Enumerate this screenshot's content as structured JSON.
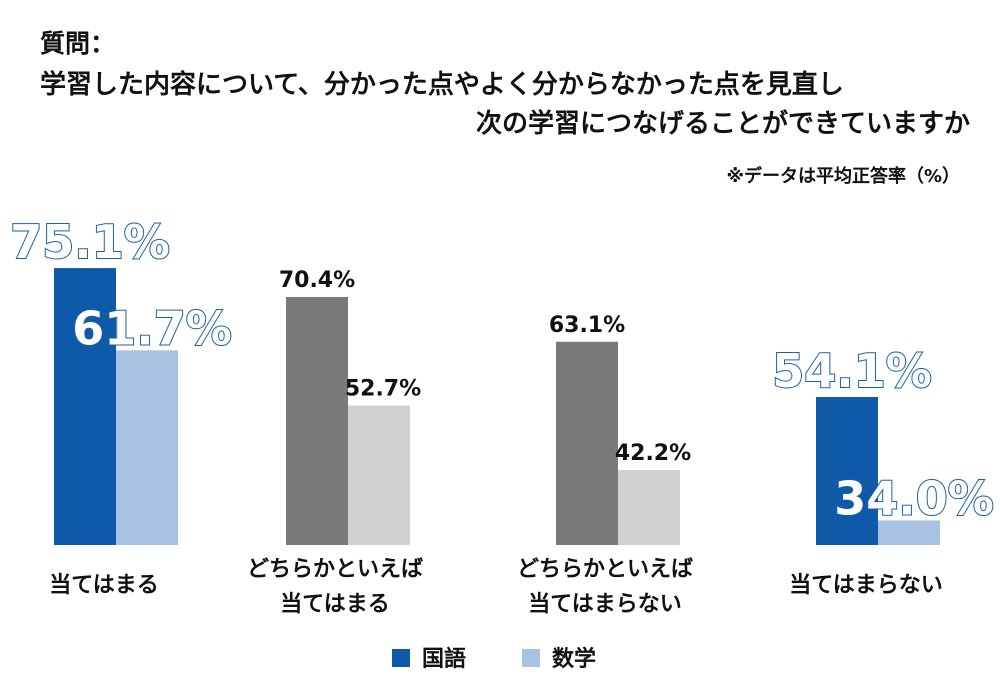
{
  "header": {
    "question_label": "質問：",
    "title_line1": "学習した内容について、分かった点やよく分からなかった点を見直し",
    "title_line2": "次の学習につなげることができていますか",
    "note": "※データは平均正答率（%）"
  },
  "colors": {
    "kokugo_highlight": "#0f5aa8",
    "sugaku_highlight": "#a7c2e3",
    "kokugo_gray": "#7a7a7a",
    "sugaku_gray": "#d0d0d0",
    "big_label_fill": "#ffffff",
    "big_label_stroke": "#1b5fa8"
  },
  "chart_data": {
    "type": "bar",
    "title": "学習した内容について、分かった点やよく分からなかった点を見直し次の学習につなげることができていますか",
    "unit": "%",
    "categories": [
      "当てはまる",
      "どちらかといえば当てはまる",
      "どちらかといえば当てはまらない",
      "当てはまらない"
    ],
    "category_lines": [
      [
        "当てはまる"
      ],
      [
        "どちらかといえば",
        "当てはまる"
      ],
      [
        "どちらかといえば",
        "当てはまらない"
      ],
      [
        "当てはまらない"
      ]
    ],
    "series": [
      {
        "name": "国語",
        "values": [
          75.1,
          70.4,
          63.1,
          54.1
        ],
        "labels": [
          "75.1%",
          "70.4%",
          "63.1%",
          "54.1%"
        ]
      },
      {
        "name": "数学",
        "values": [
          61.7,
          52.7,
          42.2,
          34.0
        ],
        "labels": [
          "61.7%",
          "52.7%",
          "42.2%",
          "34.0%"
        ]
      }
    ],
    "highlighted_categories": [
      0,
      3
    ],
    "ylim": [
      30,
      80
    ],
    "legend": {
      "position": "bottom",
      "entries": [
        "国語",
        "数学"
      ]
    }
  }
}
